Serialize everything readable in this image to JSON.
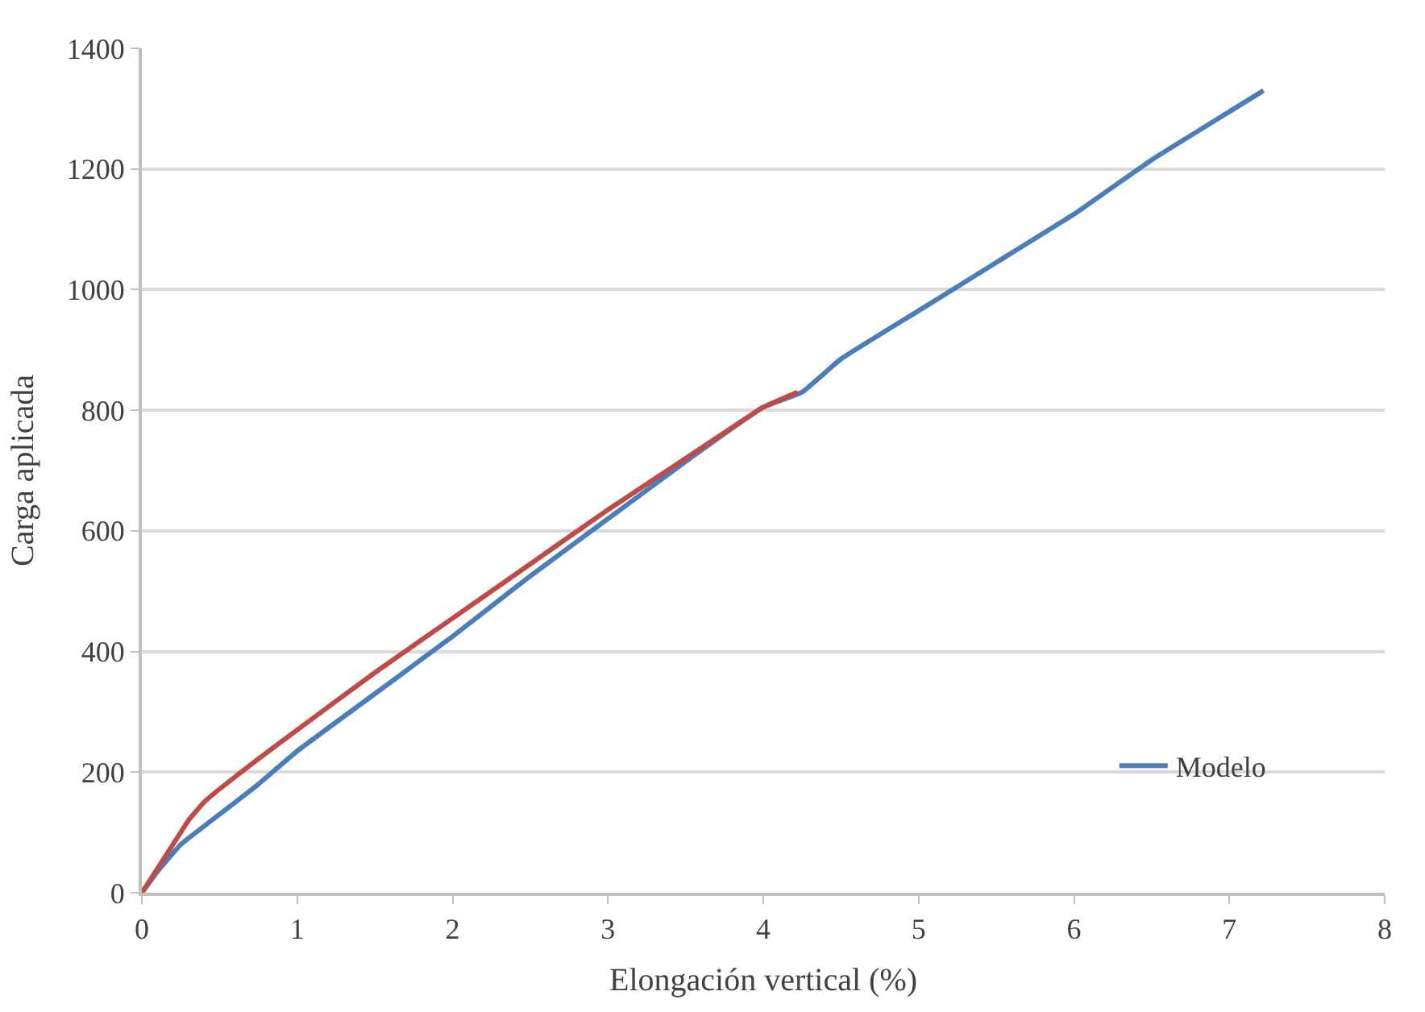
{
  "chart_data": {
    "type": "line",
    "xlabel": "Elongación vertical (%)",
    "ylabel": "Carga aplicada",
    "xlim": [
      0,
      8
    ],
    "ylim": [
      0,
      1400
    ],
    "xticks": [
      0,
      1,
      2,
      3,
      4,
      5,
      6,
      7,
      8
    ],
    "yticks": [
      0,
      200,
      400,
      600,
      800,
      1000,
      1200,
      1400
    ],
    "grid": "y",
    "legend": "bottom right",
    "marker": "none",
    "line_style": "solid",
    "series": [
      {
        "name": "Modelo",
        "color": "#4a7ebb",
        "x": [
          0,
          0.1,
          0.25,
          0.5,
          0.75,
          1,
          1.5,
          2,
          2.5,
          3,
          3.5,
          4,
          4.25,
          4.5,
          5,
          5.5,
          6,
          6.5,
          7,
          7.22
        ],
        "values": [
          0,
          35,
          80,
          130,
          180,
          235,
          330,
          425,
          525,
          620,
          715,
          805,
          830,
          885,
          965,
          1045,
          1125,
          1215,
          1295,
          1330
        ]
      },
      {
        "color": "#be4b48",
        "x": [
          0,
          0.1,
          0.2,
          0.3,
          0.4,
          0.5,
          0.75,
          1,
          1.5,
          2,
          2.5,
          3,
          3.5,
          4,
          4.22
        ],
        "values": [
          0,
          40,
          80,
          120,
          150,
          172,
          222,
          270,
          365,
          455,
          545,
          635,
          720,
          805,
          830
        ]
      }
    ]
  }
}
